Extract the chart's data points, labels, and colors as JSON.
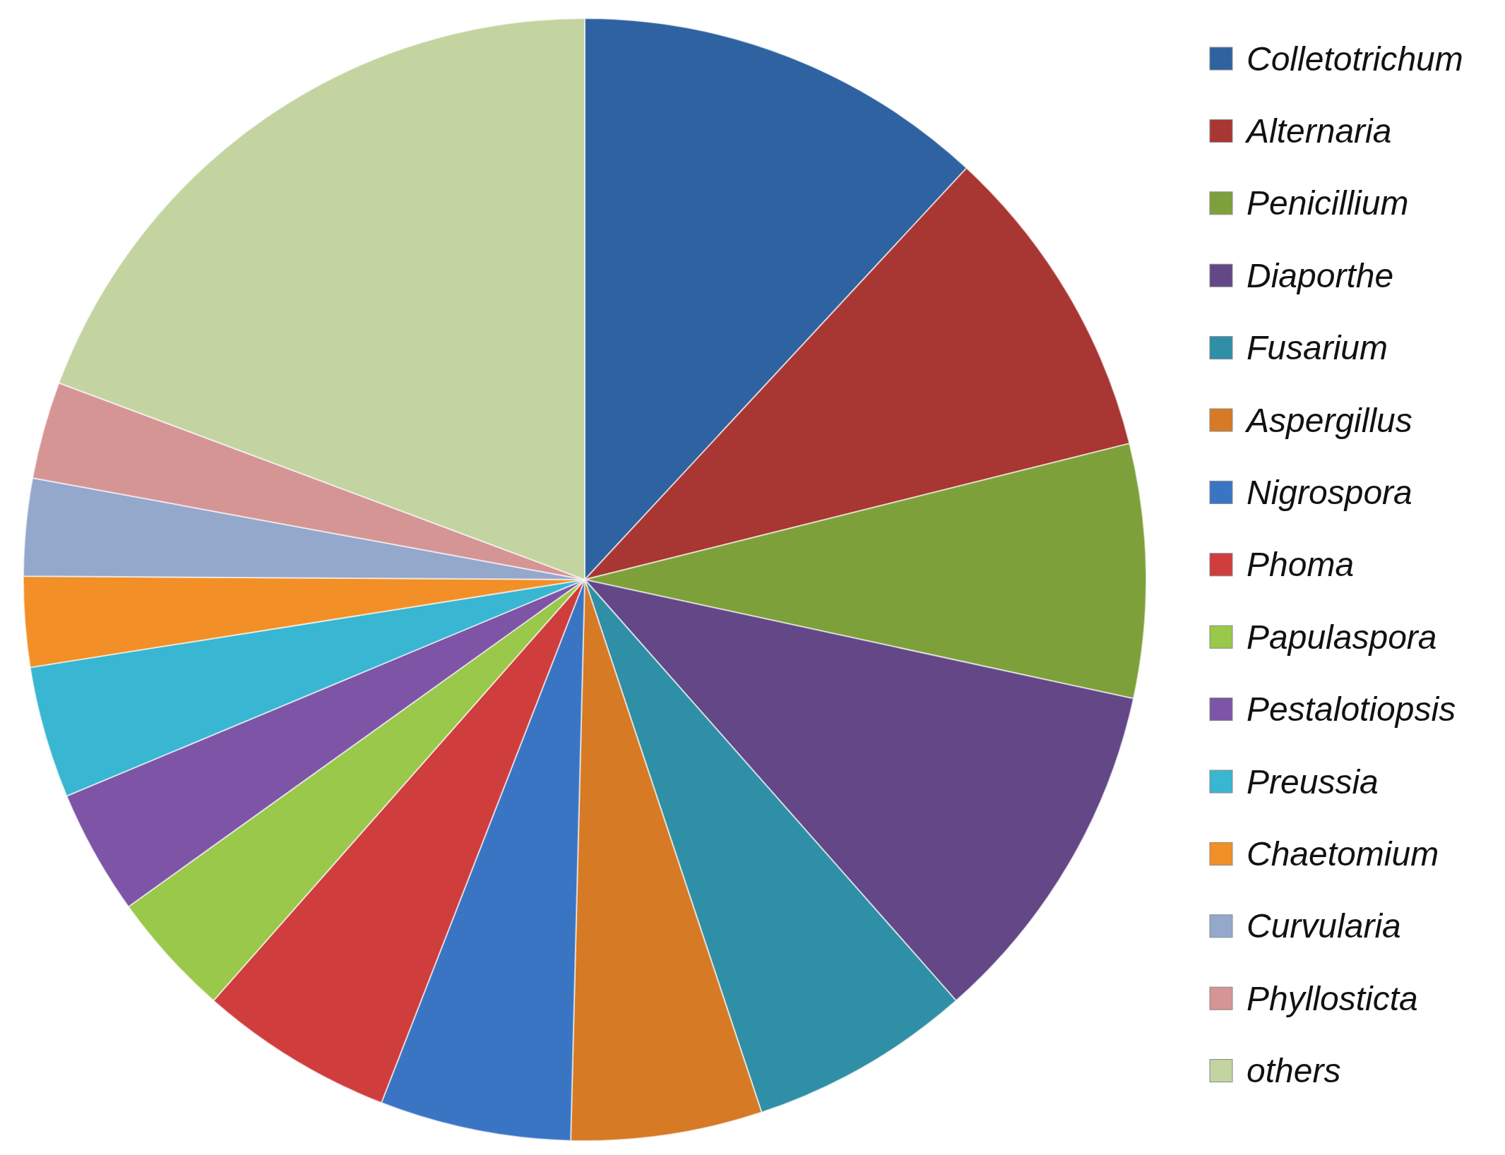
{
  "chart_data": {
    "type": "pie",
    "categories": [
      "Colletotrichum",
      "Alternaria",
      "Penicillium",
      "Diaporthe",
      "Fusarium",
      "Aspergillus",
      "Nigrospora",
      "Phoma",
      "Papulaspora",
      "Pestalotiopsis",
      "Preussia",
      "Chaetomium",
      "Curvularia",
      "Phyllosticta",
      "others"
    ],
    "values": [
      11.9,
      9.2,
      7.3,
      10.1,
      6.4,
      5.5,
      5.5,
      5.6,
      3.6,
      3.6,
      3.8,
      2.6,
      2.8,
      2.8,
      19.3
    ],
    "colors": [
      "#2f62a0",
      "#a83632",
      "#7ea03a",
      "#634787",
      "#2f8fa6",
      "#d67a25",
      "#3a75c4",
      "#cf3d3d",
      "#99c84a",
      "#7d54a6",
      "#38b6d2",
      "#f28f26",
      "#94a8cc",
      "#d69595",
      "#c3d4a0"
    ],
    "legend": "right"
  }
}
